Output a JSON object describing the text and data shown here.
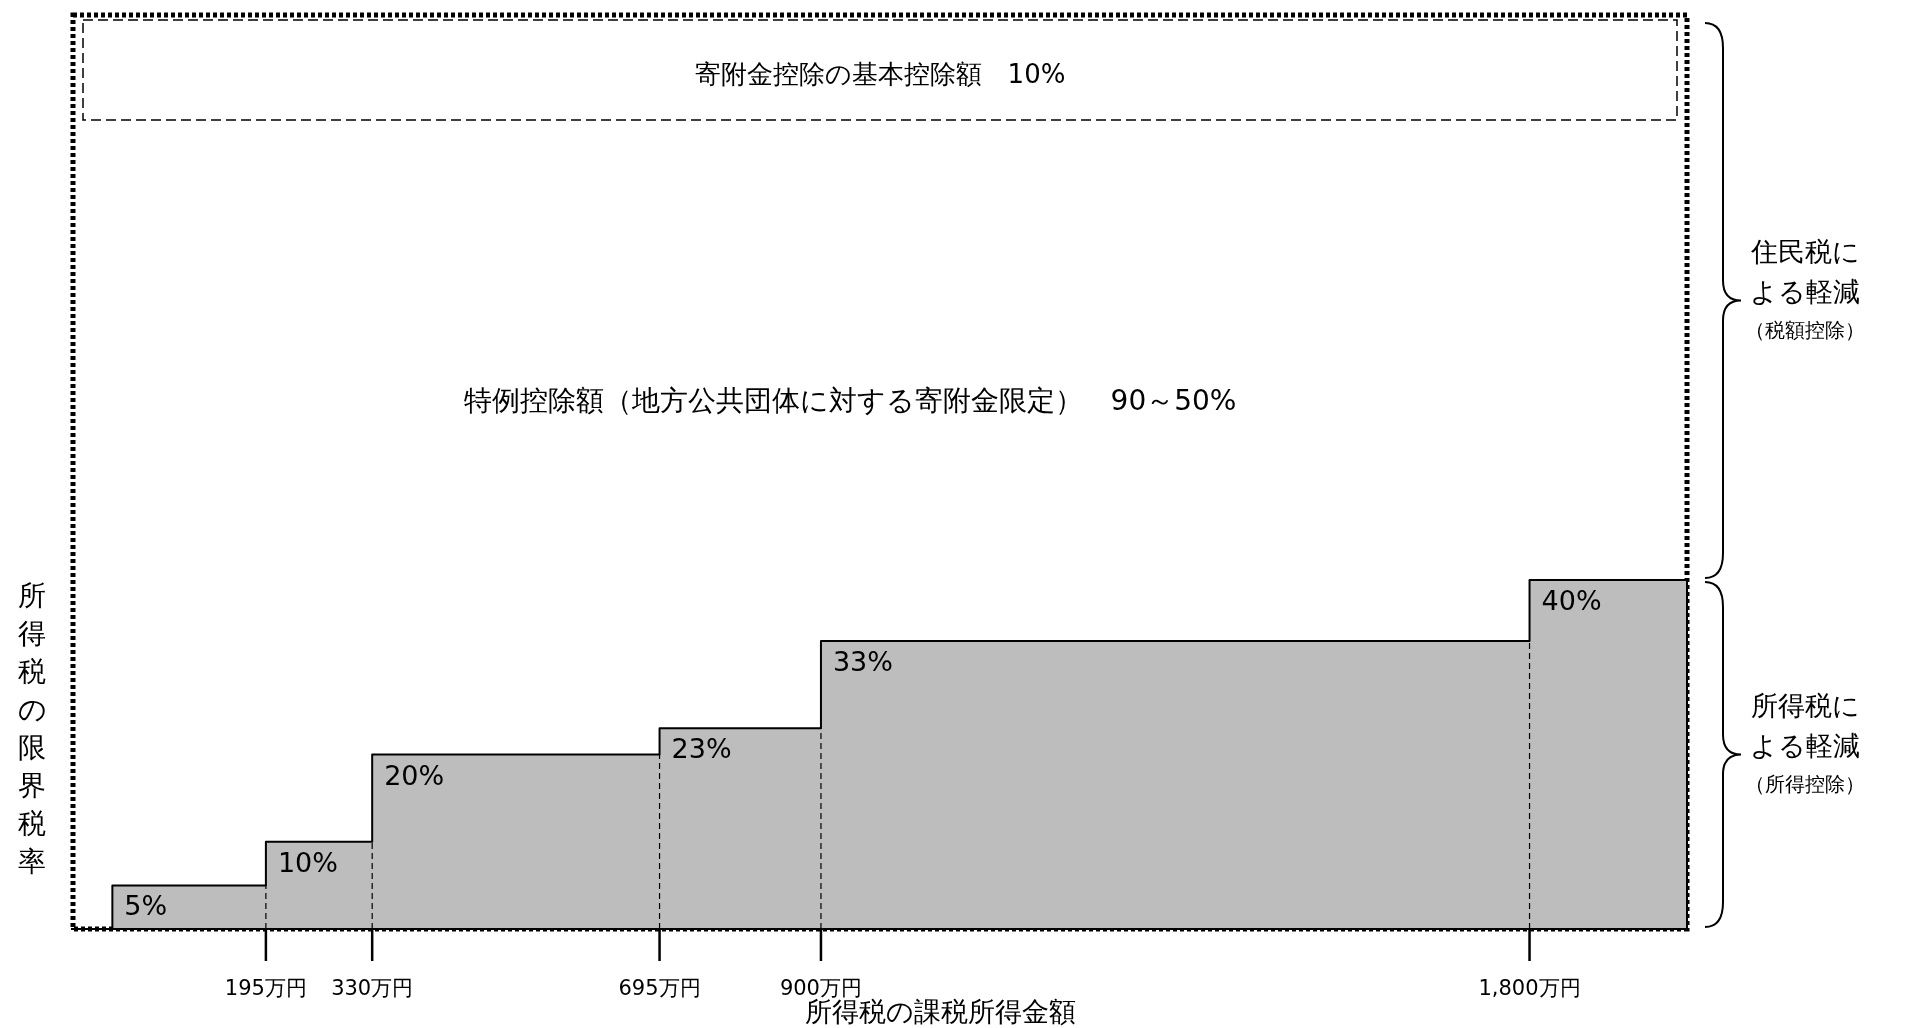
{
  "chart_data": {
    "type": "area",
    "xlabel": "所得税の課税所得金額",
    "ylabel": "所得税の限界税率",
    "x": [
      0,
      195,
      195,
      330,
      330,
      695,
      695,
      900,
      900,
      1800,
      1800,
      2000
    ],
    "values": [
      5,
      5,
      10,
      10,
      20,
      20,
      23,
      23,
      33,
      33,
      40,
      40
    ],
    "value_labels": [
      "5%",
      null,
      "10%",
      null,
      "20%",
      null,
      "23%",
      null,
      "33%",
      null,
      "40%",
      null
    ],
    "ref_lines": [
      {
        "axis": "x",
        "value": 195,
        "line_style": "dashed"
      },
      {
        "axis": "x",
        "value": 330,
        "line_style": "dashed"
      },
      {
        "axis": "x",
        "value": 695,
        "line_style": "dashed"
      },
      {
        "axis": "x",
        "value": 900,
        "line_style": "dashed"
      },
      {
        "axis": "x",
        "value": 1800,
        "line_style": "dashed"
      }
    ],
    "color": "#bdbdbd",
    "xlim": [
      -50,
      2000
    ],
    "xticks": [
      {
        "value": 195,
        "label": "195万円"
      },
      {
        "value": 330,
        "label": "330万円"
      },
      {
        "value": 695,
        "label": "695万円"
      },
      {
        "value": 900,
        "label": "900万円"
      },
      {
        "value": 1800,
        "label": "1,800万円"
      }
    ],
    "tick_labels": "x",
    "annotations": [
      "寄附金控除の基本控除額　10%",
      "特例控除額（地方公共団体に対する寄附金限定）　90～50%",
      "住民税による軽減（税額控除）",
      "所得税による軽減（所得控除）"
    ]
  }
}
